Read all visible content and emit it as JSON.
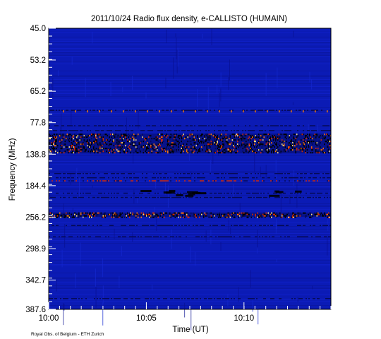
{
  "chart_data": {
    "type": "heatmap",
    "title": "2011/10/24  Radio flux density, e-CALLISTO (HUMAIN)",
    "xlabel": "Time (UT)",
    "ylabel": "Frequency (MHz)",
    "credit": "Royal Obs. of Belgium - ETH Zurich",
    "x_ticks": [
      "10:00",
      "10:05",
      "10:10"
    ],
    "y_ticks": [
      "45.0",
      "53.2",
      "65.2",
      "77.8",
      "138.8",
      "184.4",
      "256.2",
      "298.9",
      "342.7",
      "387.6"
    ],
    "colors": {
      "background": "#0b1bb5",
      "dark": "#050a55",
      "black": "#000000",
      "orange": "#ff7a00",
      "yellow": "#ffe27a",
      "red": "#d62a00"
    },
    "bright_bands": [
      {
        "label": "138.8",
        "intensity": "high",
        "note": "strong interference band with orange/yellow flecks"
      },
      {
        "label": "256.2",
        "intensity": "medium",
        "note": "black and red speckled band"
      }
    ]
  }
}
